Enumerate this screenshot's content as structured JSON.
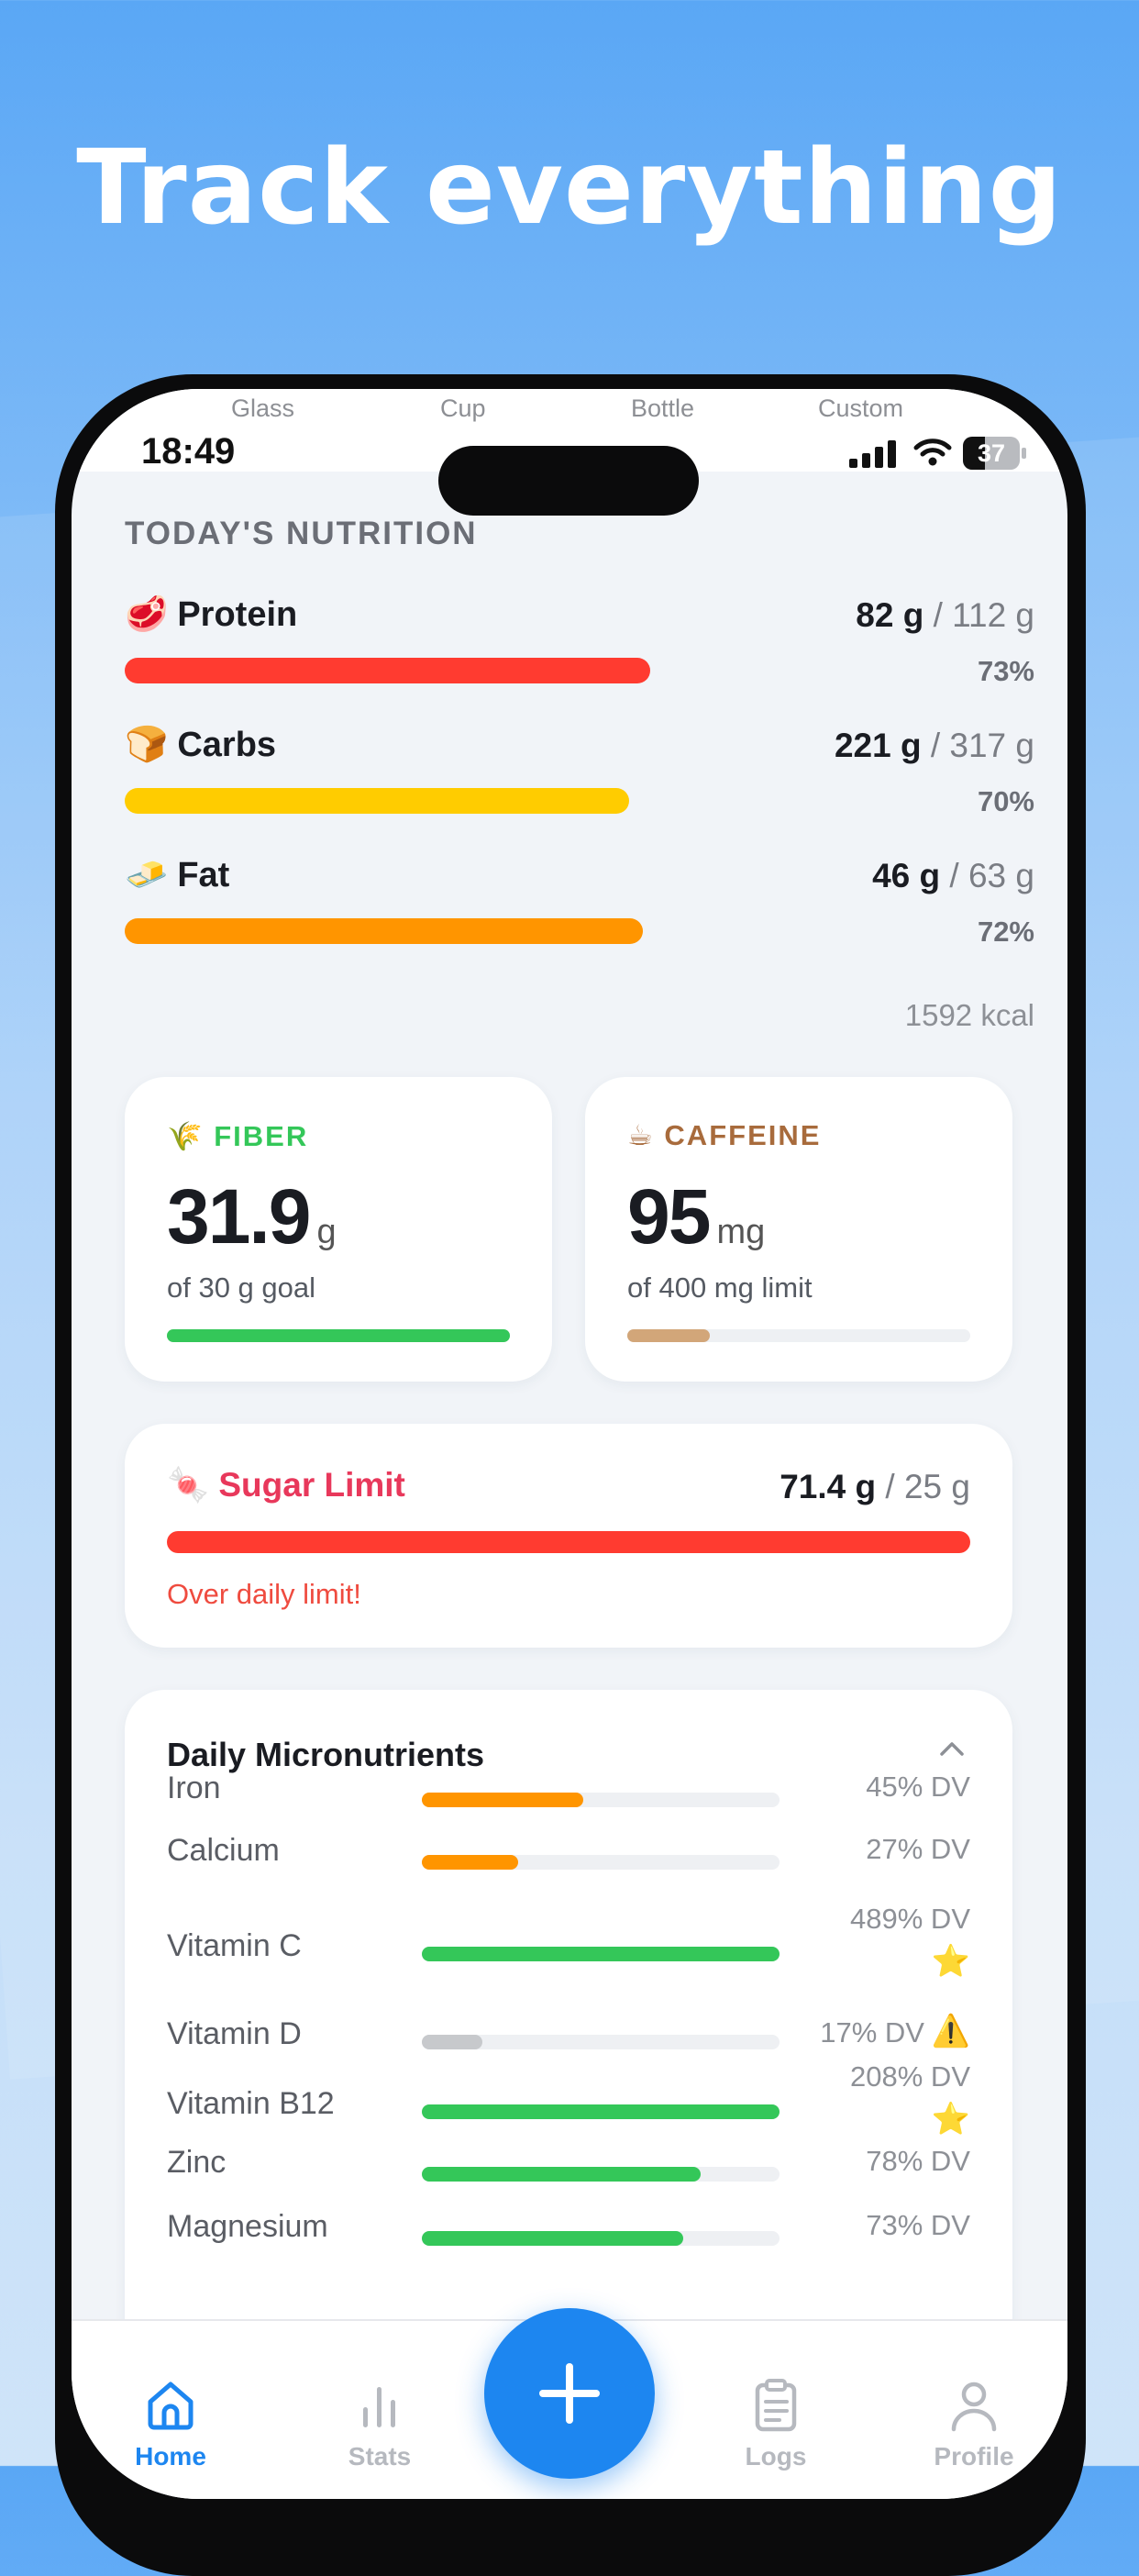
{
  "headline": "Track everything",
  "status_bar": {
    "time": "18:49",
    "battery": "37"
  },
  "top_tabs": [
    "Glass",
    "Cup",
    "Bottle",
    "Custom"
  ],
  "section_title": "TODAY'S NUTRITION",
  "macros": [
    {
      "emoji": "🥩",
      "name": "Protein",
      "value": "82 g",
      "goal": "/ 112 g",
      "percent": "73%",
      "fraction": 0.73,
      "color": "#ff3b30"
    },
    {
      "emoji": "🍞",
      "name": "Carbs",
      "value": "221 g",
      "goal": "/ 317 g",
      "percent": "70%",
      "fraction": 0.7,
      "color": "#ffcc00"
    },
    {
      "emoji": "🧈",
      "name": "Fat",
      "value": "46 g",
      "goal": "/ 63 g",
      "percent": "72%",
      "fraction": 0.72,
      "color": "#ff9500"
    }
  ],
  "kcal": "1592 kcal",
  "fiber": {
    "emoji": "🌾",
    "label": "FIBER",
    "value": "31.9",
    "unit": "g",
    "sub": "of 30 g goal",
    "fraction": 1.0,
    "color": "#34c759"
  },
  "caffeine": {
    "emoji": "☕",
    "label": "CAFFEINE",
    "value": "95",
    "unit": "mg",
    "sub": "of 400 mg limit",
    "fraction": 0.24,
    "color": "#d2a679",
    "label_color": "#a86b3c"
  },
  "sugar": {
    "emoji": "🍬",
    "title": "Sugar Limit",
    "value": "71.4 g",
    "goal": "/ 25 g",
    "warning": "Over daily limit!"
  },
  "micronutrients": {
    "title": "Daily Micronutrients",
    "items": [
      {
        "name": "Iron",
        "dv": "45% DV",
        "fraction": 0.45,
        "color": "#ff9500",
        "badge": ""
      },
      {
        "name": "Calcium",
        "dv": "27% DV",
        "fraction": 0.27,
        "color": "#ff9500",
        "badge": ""
      },
      {
        "name": "Vitamin C",
        "dv": "489% DV",
        "fraction": 1.0,
        "color": "#34c759",
        "badge": "⭐"
      },
      {
        "name": "Vitamin D",
        "dv": "17% DV",
        "fraction": 0.17,
        "color": "#c7c9cc",
        "badge": "⚠️"
      },
      {
        "name": "Vitamin B12",
        "dv": "208% DV",
        "fraction": 1.0,
        "color": "#34c759",
        "badge": "⭐"
      },
      {
        "name": "Zinc",
        "dv": "78% DV",
        "fraction": 0.78,
        "color": "#34c759",
        "badge": ""
      },
      {
        "name": "Magnesium",
        "dv": "73% DV",
        "fraction": 0.73,
        "color": "#34c759",
        "badge": ""
      }
    ]
  },
  "nav": {
    "home": "Home",
    "stats": "Stats",
    "logs": "Logs",
    "profile": "Profile"
  },
  "accent_color": "#1d86f0"
}
